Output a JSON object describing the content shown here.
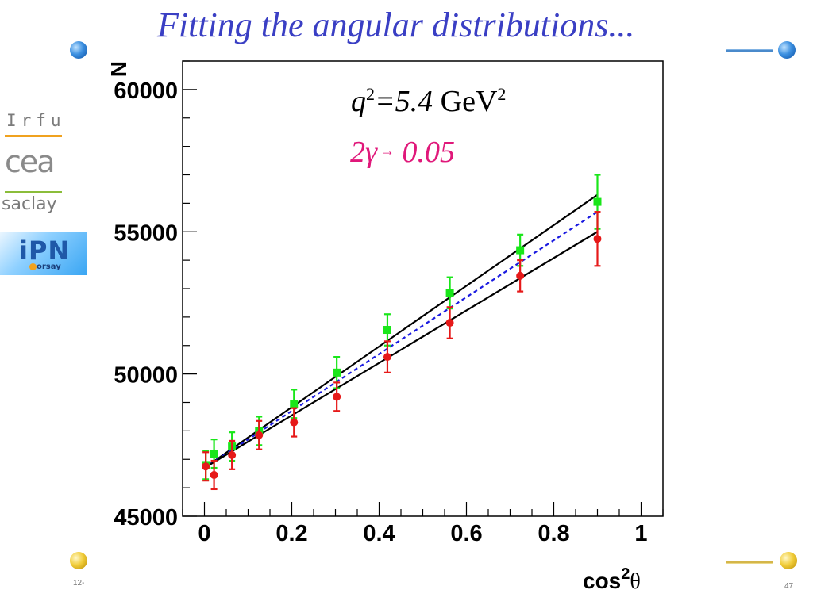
{
  "slide": {
    "title": "Fitting the angular distributions...",
    "footer_left": "12-",
    "page_number": "47"
  },
  "logos": {
    "irfu": "Irfu",
    "cea": "cea",
    "saclay": "saclay",
    "ipn": "iPN",
    "orsay": "orsay"
  },
  "colors": {
    "title": "#3a3fc4",
    "green_series": "#19e619",
    "red_series": "#e61919",
    "fit_solid": "#000000",
    "fit_dashed": "#1a1ae0",
    "annotation_pink": "#e0187a"
  },
  "chart_data": {
    "type": "scatter",
    "title_line1": {
      "q": "q",
      "q_exp": "2",
      "value": "=5.4",
      "unit": " GeV",
      "unit_exp": "2"
    },
    "title_line2": {
      "prefix": "2",
      "gamma": "γ",
      "arrow": "→",
      "value": " 0.05"
    },
    "xlabel": {
      "text": "cos",
      "exp": "2",
      "theta": "θ"
    },
    "ylabel": "N",
    "xlim": [
      -0.05,
      1.05
    ],
    "ylim": [
      45000,
      61000
    ],
    "xticks": [
      0,
      0.2,
      0.4,
      0.6,
      0.8,
      1
    ],
    "xtick_labels": [
      "0",
      "0.2",
      "0.4",
      "0.6",
      "0.8",
      "1"
    ],
    "yticks": [
      45000,
      50000,
      55000,
      60000
    ],
    "ytick_labels": [
      "45000",
      "50000",
      "55000",
      "60000"
    ],
    "series": [
      {
        "name": "green-squares",
        "marker": "square",
        "color": "#19e619",
        "x": [
          0.003,
          0.022,
          0.063,
          0.125,
          0.205,
          0.303,
          0.419,
          0.562,
          0.723,
          0.9
        ],
        "y": [
          46800,
          47200,
          47450,
          48000,
          48950,
          50050,
          51550,
          52850,
          54350,
          56050
        ],
        "err": [
          500,
          500,
          500,
          500,
          500,
          550,
          550,
          550,
          550,
          950
        ]
      },
      {
        "name": "red-circles",
        "marker": "circle",
        "color": "#e61919",
        "x": [
          0.003,
          0.022,
          0.063,
          0.125,
          0.205,
          0.303,
          0.419,
          0.562,
          0.723,
          0.9
        ],
        "y": [
          46750,
          46450,
          47150,
          47850,
          48300,
          49200,
          50600,
          51800,
          53450,
          54750
        ],
        "err": [
          500,
          500,
          500,
          500,
          500,
          500,
          550,
          550,
          550,
          950
        ]
      }
    ],
    "fits": [
      {
        "name": "upper-fit",
        "style": "solid",
        "color": "#000000",
        "x": [
          0,
          0.9
        ],
        "y": [
          46700,
          56300
        ]
      },
      {
        "name": "middle-fit",
        "style": "dashed",
        "color": "#1a1ae0",
        "x": [
          0,
          0.9
        ],
        "y": [
          46700,
          55700
        ]
      },
      {
        "name": "lower-fit",
        "style": "solid",
        "color": "#000000",
        "x": [
          0,
          0.9
        ],
        "y": [
          46700,
          55000
        ]
      }
    ]
  }
}
